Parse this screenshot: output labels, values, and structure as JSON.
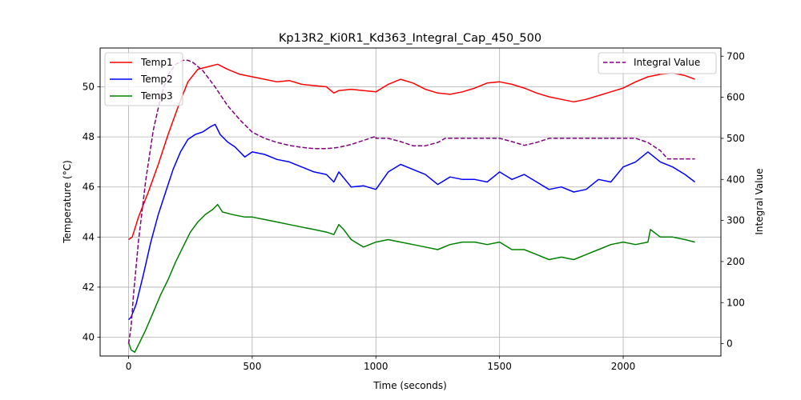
{
  "chart_data": {
    "type": "line",
    "title": "Kp13R2_Ki0R1_Kd363_Integral_Cap_450_500",
    "xlabel": "Time (seconds)",
    "ylabel_left": "Temperature (°C)",
    "ylabel_right": "Integral Value",
    "xlim": [
      -115,
      2395
    ],
    "ylim_left": [
      39.25,
      51.55
    ],
    "ylim_right": [
      -30,
      720
    ],
    "x_ticks": [
      0,
      500,
      1000,
      1500,
      2000
    ],
    "y_ticks_left": [
      40,
      42,
      44,
      46,
      48,
      50
    ],
    "y_ticks_right": [
      0,
      100,
      200,
      300,
      400,
      500,
      600,
      700
    ],
    "grid": true,
    "legend_left_position": "upper-left",
    "legend_right_position": "upper-right",
    "series": [
      {
        "name": "Temp1",
        "axis": "left",
        "color": "#ff0000",
        "style": "solid",
        "x": [
          0,
          15,
          40,
          80,
          120,
          160,
          200,
          240,
          280,
          320,
          360,
          400,
          450,
          500,
          550,
          600,
          650,
          700,
          750,
          800,
          830,
          850,
          900,
          950,
          1000,
          1050,
          1100,
          1150,
          1200,
          1250,
          1300,
          1350,
          1400,
          1450,
          1500,
          1550,
          1600,
          1650,
          1700,
          1750,
          1800,
          1850,
          1900,
          1950,
          2000,
          2050,
          2100,
          2150,
          2200,
          2250,
          2290
        ],
        "y": [
          43.9,
          44.0,
          44.8,
          45.8,
          46.9,
          48.1,
          49.2,
          50.2,
          50.7,
          50.8,
          50.9,
          50.7,
          50.5,
          50.4,
          50.3,
          50.2,
          50.25,
          50.1,
          50.05,
          50.0,
          49.75,
          49.85,
          49.9,
          49.85,
          49.8,
          50.1,
          50.3,
          50.15,
          49.9,
          49.75,
          49.7,
          49.8,
          49.95,
          50.15,
          50.2,
          50.1,
          49.95,
          49.75,
          49.6,
          49.5,
          49.4,
          49.5,
          49.65,
          49.8,
          49.95,
          50.2,
          50.4,
          50.5,
          50.55,
          50.45,
          50.3
        ]
      },
      {
        "name": "Temp2",
        "axis": "left",
        "color": "#0000ff",
        "style": "solid",
        "x": [
          0,
          10,
          30,
          60,
          90,
          120,
          150,
          180,
          210,
          240,
          270,
          300,
          330,
          350,
          370,
          400,
          430,
          470,
          500,
          550,
          600,
          650,
          700,
          750,
          800,
          830,
          850,
          900,
          950,
          1000,
          1050,
          1100,
          1150,
          1200,
          1250,
          1300,
          1350,
          1400,
          1450,
          1500,
          1550,
          1600,
          1650,
          1700,
          1750,
          1800,
          1850,
          1900,
          1950,
          2000,
          2050,
          2100,
          2150,
          2200,
          2250,
          2290
        ],
        "y": [
          40.7,
          40.8,
          41.3,
          42.5,
          43.8,
          44.9,
          45.8,
          46.7,
          47.4,
          47.9,
          48.1,
          48.2,
          48.4,
          48.5,
          48.1,
          47.8,
          47.6,
          47.2,
          47.4,
          47.3,
          47.1,
          47.0,
          46.8,
          46.6,
          46.5,
          46.2,
          46.6,
          46.0,
          46.05,
          45.9,
          46.6,
          46.9,
          46.7,
          46.5,
          46.1,
          46.4,
          46.3,
          46.3,
          46.2,
          46.6,
          46.3,
          46.5,
          46.2,
          45.9,
          46.0,
          45.8,
          45.9,
          46.3,
          46.2,
          46.8,
          47.0,
          47.4,
          47.0,
          46.8,
          46.5,
          46.2
        ]
      },
      {
        "name": "Temp3",
        "axis": "left",
        "color": "#008000",
        "style": "solid",
        "x": [
          0,
          10,
          25,
          40,
          70,
          100,
          130,
          160,
          190,
          220,
          250,
          280,
          310,
          340,
          360,
          380,
          420,
          470,
          500,
          550,
          600,
          650,
          700,
          750,
          800,
          830,
          850,
          870,
          900,
          950,
          1000,
          1050,
          1100,
          1150,
          1200,
          1250,
          1300,
          1350,
          1400,
          1450,
          1500,
          1550,
          1600,
          1650,
          1700,
          1750,
          1800,
          1850,
          1900,
          1950,
          2000,
          2050,
          2100,
          2110,
          2150,
          2200,
          2250,
          2290
        ],
        "y": [
          39.8,
          39.5,
          39.4,
          39.7,
          40.3,
          41.0,
          41.7,
          42.3,
          43.0,
          43.6,
          44.2,
          44.6,
          44.9,
          45.1,
          45.3,
          45.0,
          44.9,
          44.8,
          44.8,
          44.7,
          44.6,
          44.5,
          44.4,
          44.3,
          44.2,
          44.1,
          44.5,
          44.3,
          43.9,
          43.6,
          43.8,
          43.9,
          43.8,
          43.7,
          43.6,
          43.5,
          43.7,
          43.8,
          43.8,
          43.7,
          43.8,
          43.5,
          43.5,
          43.3,
          43.1,
          43.2,
          43.1,
          43.3,
          43.5,
          43.7,
          43.8,
          43.7,
          43.8,
          44.3,
          44.0,
          44.0,
          43.9,
          43.8
        ]
      },
      {
        "name": "Integral Value",
        "axis": "right",
        "color": "#800080",
        "style": "dashed",
        "x": [
          0,
          10,
          20,
          40,
          70,
          100,
          130,
          160,
          190,
          220,
          240,
          260,
          300,
          350,
          400,
          450,
          500,
          550,
          600,
          650,
          700,
          750,
          800,
          850,
          900,
          950,
          1000,
          1000,
          1050,
          1100,
          1150,
          1200,
          1250,
          1280,
          1300,
          1400,
          1500,
          1550,
          1600,
          1650,
          1700,
          1750,
          1800,
          1900,
          2000,
          2050,
          2100,
          2150,
          2180,
          2200,
          2250,
          2290
        ],
        "y": [
          0,
          40,
          120,
          250,
          400,
          520,
          600,
          655,
          680,
          690,
          690,
          685,
          665,
          625,
          580,
          545,
          515,
          500,
          490,
          483,
          478,
          475,
          475,
          478,
          485,
          495,
          505,
          500,
          500,
          492,
          482,
          482,
          490,
          500,
          500,
          500,
          500,
          492,
          483,
          490,
          500,
          500,
          500,
          500,
          500,
          500,
          490,
          470,
          450,
          450,
          450,
          450
        ]
      }
    ]
  }
}
